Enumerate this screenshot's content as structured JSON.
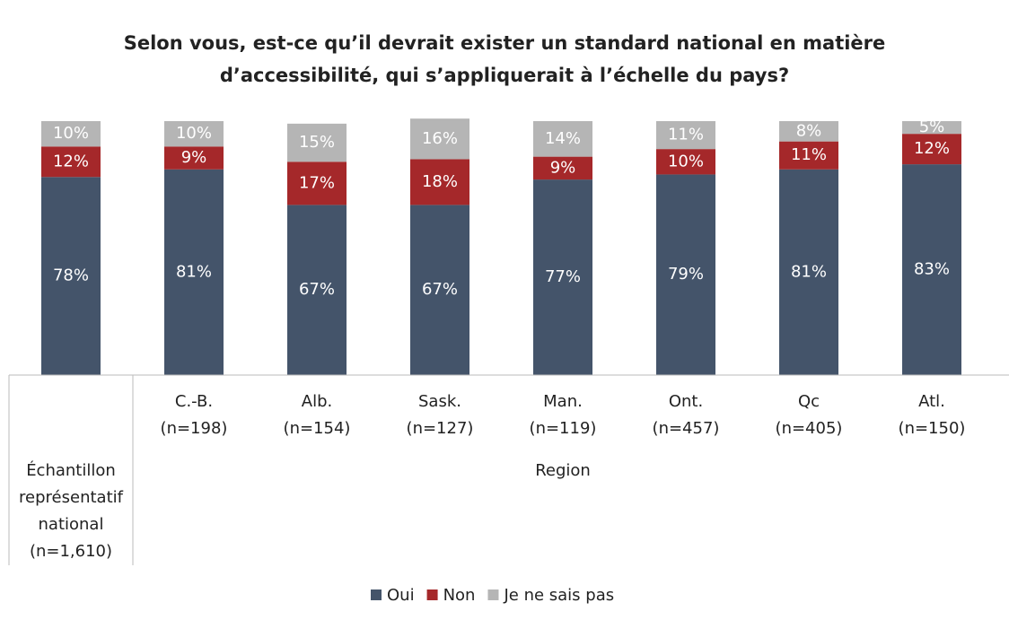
{
  "chart_data": {
    "type": "stacked_bar",
    "title": "Selon vous, est-ce qu’il devrait exister un standard national en matière\nd’accessibilité, qui s’appliquerait à l’échelle du pays?",
    "categories": [
      "Échantillon\nreprésentatif\nnational\n(n=1,610)",
      "C.-B.\n(n=198)",
      "Alb.\n(n=154)",
      "Sask.\n(n=127)",
      "Man.\n(n=119)",
      "Ont.\n(n=457)",
      "Qc\n(n=405)",
      "Atl.\n(n=150)"
    ],
    "group_label": "Region",
    "ylim": [
      0,
      100
    ],
    "series": [
      {
        "name": "Oui",
        "color": "#44546a",
        "values": [
          78,
          81,
          67,
          67,
          77,
          79,
          81,
          83
        ],
        "value_labels": [
          "78%",
          "81%",
          "67%",
          "67%",
          "77%",
          "79%",
          "81%",
          "83%"
        ]
      },
      {
        "name": "Non",
        "color": "#a5282a",
        "values": [
          12,
          9,
          17,
          18,
          9,
          10,
          11,
          12
        ],
        "value_labels": [
          "12%",
          "9%",
          "17%",
          "18%",
          "9%",
          "10%",
          "11%",
          "12%"
        ]
      },
      {
        "name": "Je ne sais pas",
        "color": "#b5b5b5",
        "values": [
          10,
          10,
          15,
          16,
          14,
          11,
          8,
          5
        ],
        "value_labels": [
          "10%",
          "10%",
          "15%",
          "16%",
          "14%",
          "11%",
          "8%",
          "5%"
        ]
      }
    ],
    "legend": "bottom"
  }
}
